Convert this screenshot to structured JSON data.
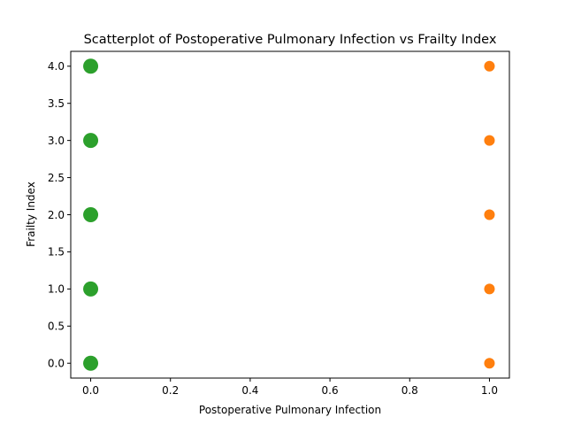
{
  "chart_data": {
    "type": "scatter",
    "title": "Scatterplot of Postoperative Pulmonary Infection vs Frailty Index",
    "xlabel": "Postoperative Pulmonary Infection",
    "ylabel": "Frailty Index",
    "xlim": [
      -0.05,
      1.05
    ],
    "ylim": [
      -0.2,
      4.2
    ],
    "xticks": [
      0.0,
      0.2,
      0.4,
      0.6,
      0.8,
      1.0
    ],
    "yticks": [
      0.0,
      0.5,
      1.0,
      1.5,
      2.0,
      2.5,
      3.0,
      3.5,
      4.0
    ],
    "xtick_labels": [
      "0.0",
      "0.2",
      "0.4",
      "0.6",
      "0.8",
      "1.0"
    ],
    "ytick_labels": [
      "0.0",
      "0.5",
      "1.0",
      "1.5",
      "2.0",
      "2.5",
      "3.0",
      "3.5",
      "4.0"
    ],
    "grid": false,
    "series": [
      {
        "color": "#ff7f0e",
        "marker_size": "small",
        "points": [
          {
            "x": 1.0,
            "y": 0.0
          },
          {
            "x": 1.0,
            "y": 1.0
          },
          {
            "x": 1.0,
            "y": 2.0
          },
          {
            "x": 1.0,
            "y": 3.0
          },
          {
            "x": 1.0,
            "y": 4.0
          }
        ]
      },
      {
        "color": "#2ca02c",
        "marker_size": "large",
        "points": [
          {
            "x": 0.0,
            "y": 0.0
          },
          {
            "x": 0.0,
            "y": 1.0
          },
          {
            "x": 0.0,
            "y": 2.0
          },
          {
            "x": 0.0,
            "y": 3.0
          },
          {
            "x": 0.0,
            "y": 4.0
          }
        ]
      }
    ]
  }
}
